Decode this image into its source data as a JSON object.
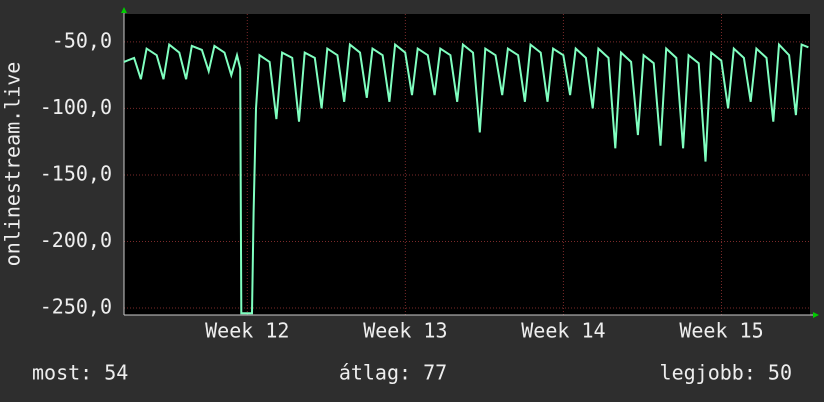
{
  "chart_data": {
    "type": "line",
    "ylabel": "onlinestream.live",
    "x": [
      11.22,
      11.284,
      11.327,
      11.363,
      11.427,
      11.47,
      11.506,
      11.57,
      11.613,
      11.649,
      11.713,
      11.756,
      11.792,
      11.856,
      11.899,
      11.935,
      11.955,
      11.962,
      12.03,
      12.04,
      12.055,
      12.077,
      12.141,
      12.184,
      12.22,
      12.284,
      12.327,
      12.363,
      12.427,
      12.47,
      12.506,
      12.57,
      12.613,
      12.649,
      12.713,
      12.756,
      12.792,
      12.856,
      12.899,
      12.935,
      12.999,
      13.042,
      13.078,
      13.142,
      13.185,
      13.221,
      13.285,
      13.328,
      13.364,
      13.428,
      13.471,
      13.506,
      13.57,
      13.613,
      13.649,
      13.713,
      13.756,
      13.792,
      13.856,
      13.899,
      13.935,
      13.999,
      14.042,
      14.078,
      14.142,
      14.185,
      14.221,
      14.285,
      14.328,
      14.364,
      14.428,
      14.471,
      14.507,
      14.571,
      14.614,
      14.65,
      14.714,
      14.757,
      14.792,
      14.856,
      14.899,
      14.935,
      14.999,
      15.042,
      15.078,
      15.142,
      15.185,
      15.221,
      15.285,
      15.328,
      15.364,
      15.428,
      15.471,
      15.507,
      15.55
    ],
    "series": [
      {
        "color": "#80ffc0",
        "values": [
          -65,
          -62,
          -78,
          -55,
          -60,
          -78,
          -52,
          -58,
          -78,
          -53,
          -56,
          -72,
          -53,
          -58,
          -75,
          -60,
          -70,
          -254,
          -254,
          -178,
          -100,
          -60,
          -65,
          -108,
          -58,
          -62,
          -110,
          -58,
          -62,
          -100,
          -55,
          -60,
          -95,
          -52,
          -58,
          -92,
          -55,
          -60,
          -95,
          -52,
          -58,
          -90,
          -55,
          -60,
          -90,
          -55,
          -60,
          -95,
          -52,
          -58,
          -118,
          -55,
          -60,
          -90,
          -55,
          -60,
          -95,
          -52,
          -58,
          -95,
          -55,
          -60,
          -90,
          -55,
          -62,
          -100,
          -55,
          -62,
          -130,
          -58,
          -65,
          -120,
          -60,
          -66,
          -128,
          -55,
          -62,
          -130,
          -60,
          -66,
          -140,
          -58,
          -64,
          -100,
          -55,
          -62,
          -95,
          -55,
          -62,
          -110,
          -52,
          -60,
          -105,
          -52,
          -54
        ]
      }
    ],
    "xlim": [
      11.22,
      15.56
    ],
    "xticks": [
      {
        "value": 12,
        "label": "Week 12"
      },
      {
        "value": 13,
        "label": "Week 13"
      },
      {
        "value": 14,
        "label": "Week 14"
      },
      {
        "value": 15,
        "label": "Week 15"
      }
    ],
    "ylim": [
      -255.3,
      -29
    ],
    "yticks": [
      {
        "value": -50,
        "label": "-50,0"
      },
      {
        "value": -100,
        "label": "-100,0"
      },
      {
        "value": -150,
        "label": "-150,0"
      },
      {
        "value": -200,
        "label": "-200,0"
      },
      {
        "value": -250,
        "label": "-250,0"
      }
    ],
    "grid": true,
    "footer": [
      "most: 54",
      "átlag: 77",
      "legjobb: 50"
    ]
  }
}
